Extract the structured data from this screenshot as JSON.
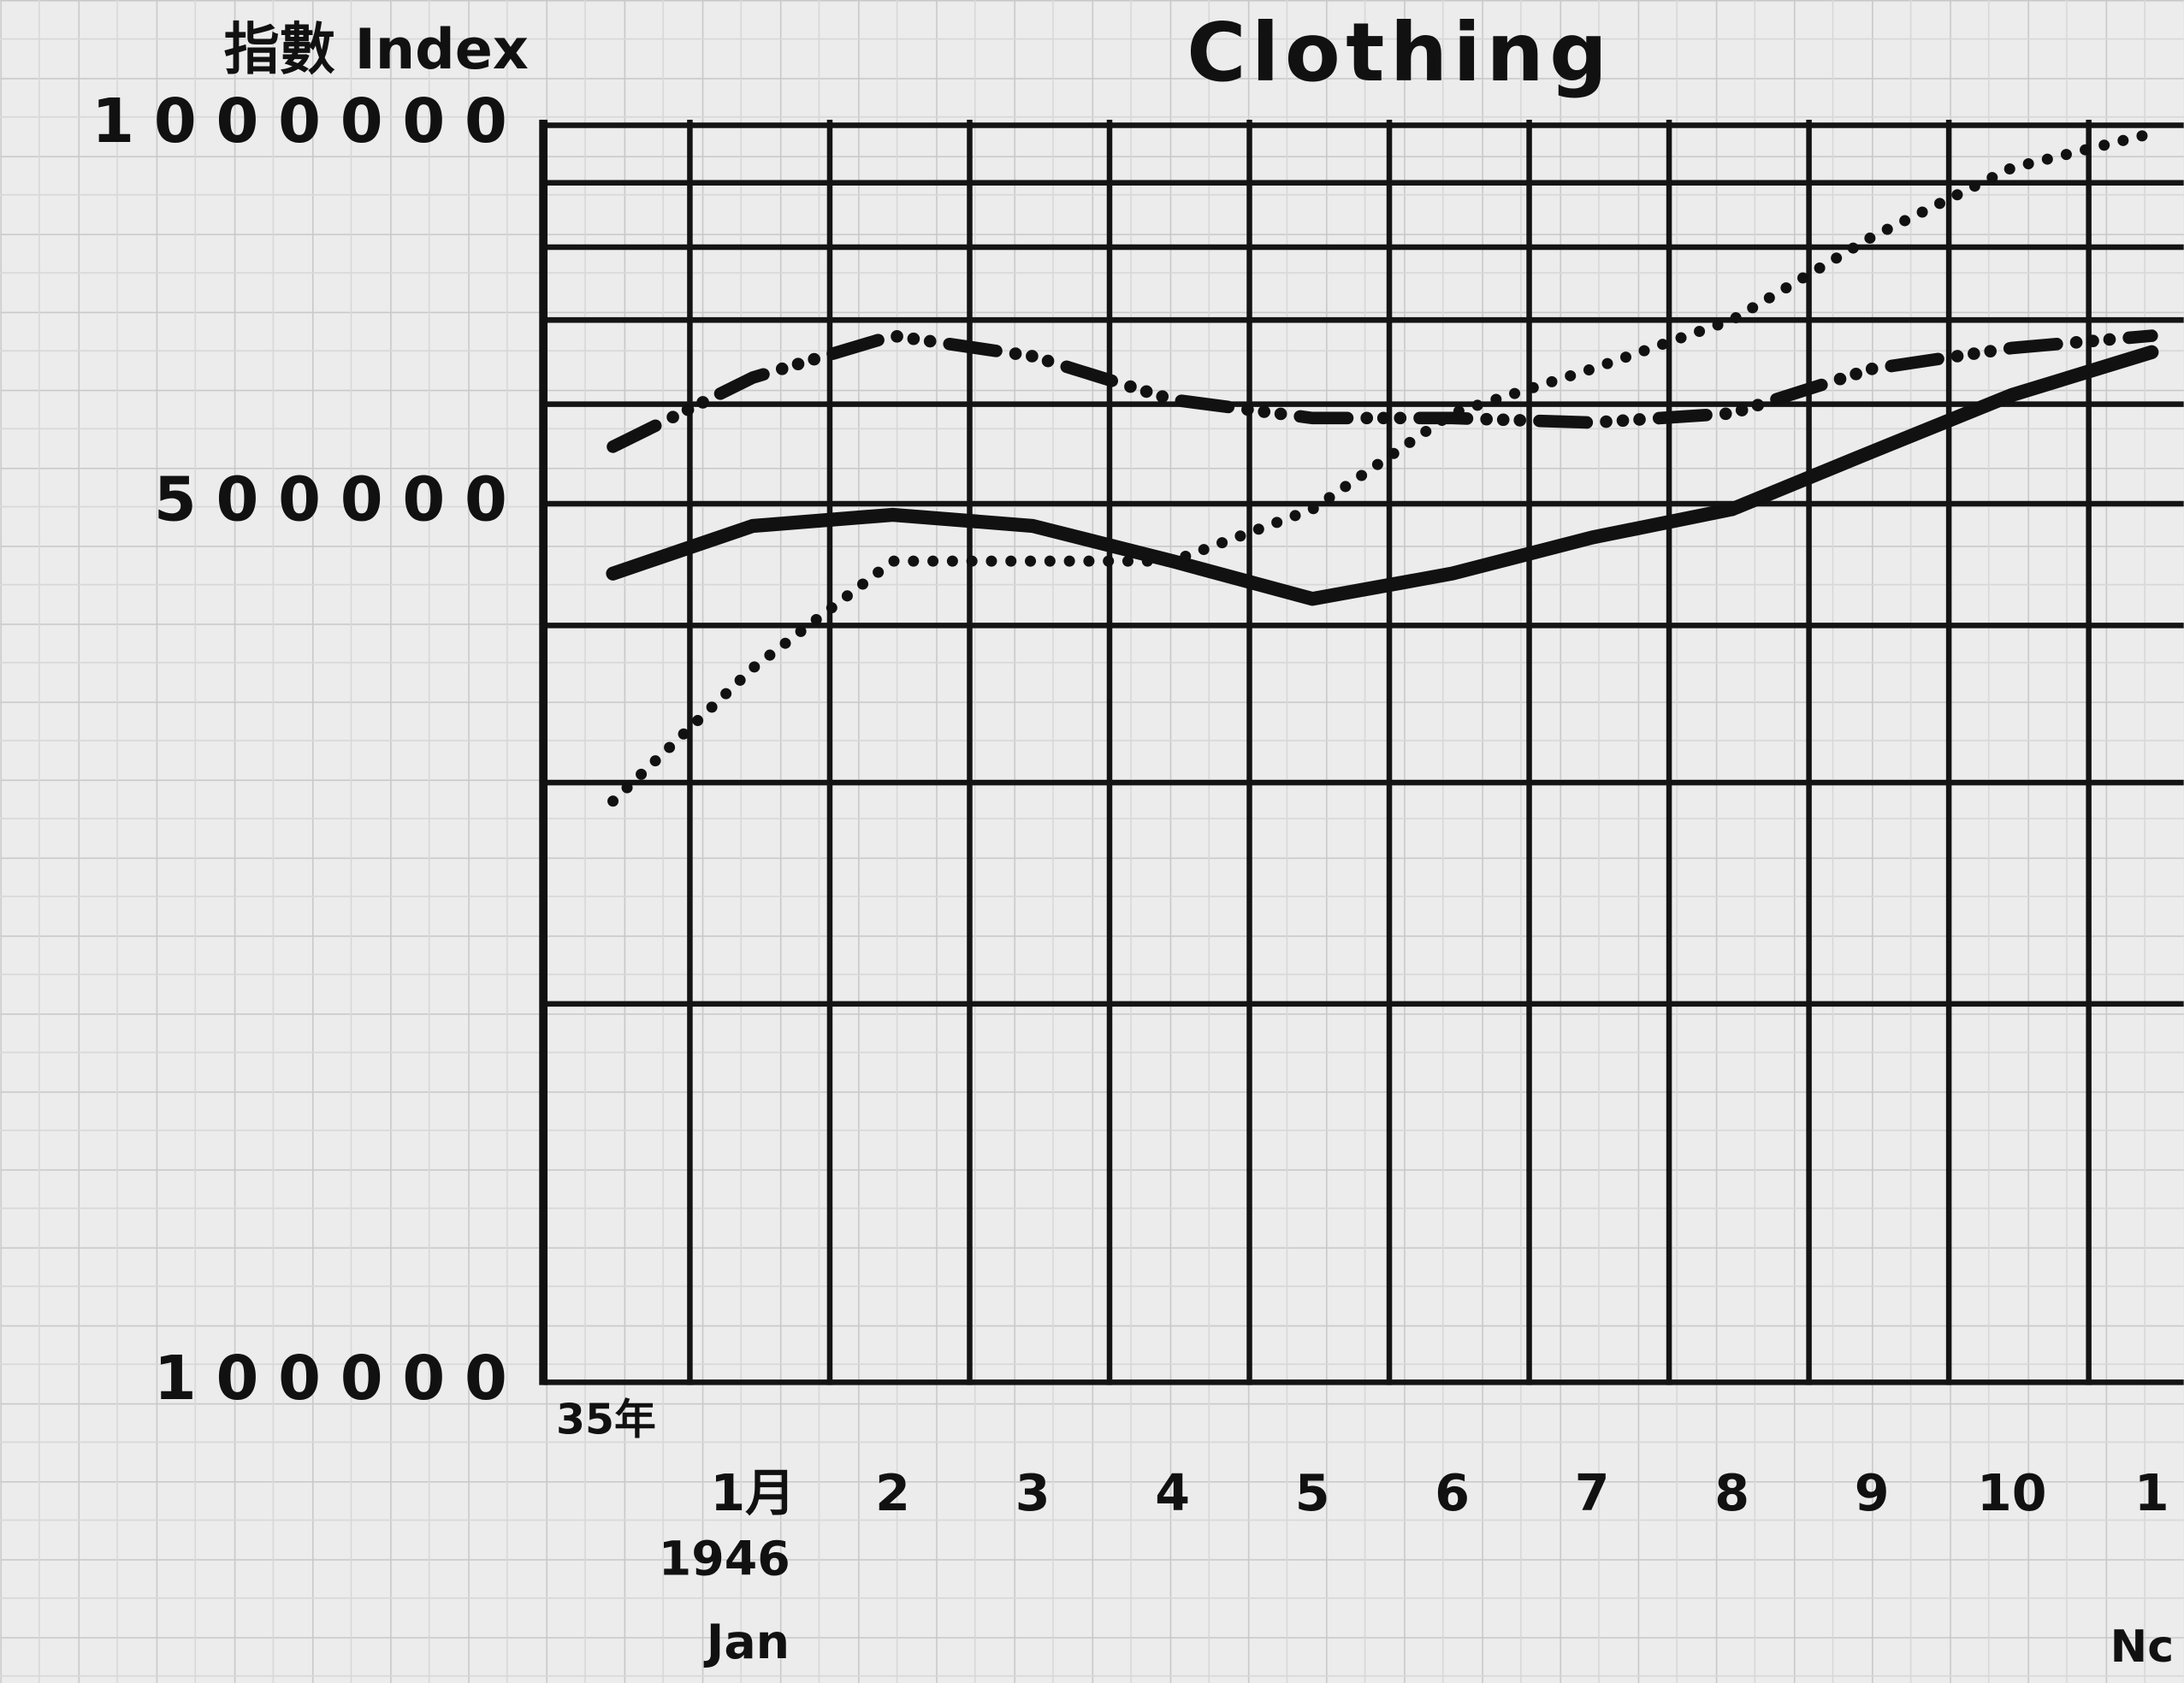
{
  "chart_data": {
    "type": "line",
    "title": "Clothing",
    "y_label": "指數 Index",
    "categories": [
      "35年",
      "1月",
      "2",
      "3",
      "4",
      "5",
      "6",
      "7",
      "8",
      "9",
      "10",
      "1"
    ],
    "year_label": "1946",
    "start_month_label": "Jan",
    "end_month_label": "Nc",
    "log_y": true,
    "ylim": [
      100000,
      1000000
    ],
    "yticks": [
      100000,
      500000,
      1000000
    ],
    "minor_yticks": [
      200000,
      300000,
      400000,
      600000,
      700000,
      800000,
      900000
    ],
    "grid": true,
    "series": [
      {
        "style": "solid",
        "color": "#111111",
        "values": [
          440000,
          480000,
          490000,
          480000,
          450000,
          420000,
          440000,
          470000,
          495000,
          550000,
          610000,
          660000
        ]
      },
      {
        "style": "dotted",
        "color": "#111111",
        "values": [
          290000,
          370000,
          450000,
          450000,
          450000,
          495000,
          590000,
          640000,
          700000,
          815000,
          925000,
          985000
        ]
      },
      {
        "style": "dashdot",
        "color": "#111111",
        "values": [
          555000,
          630000,
          680000,
          655000,
          605000,
          585000,
          585000,
          580000,
          590000,
          640000,
          665000,
          680000
        ]
      }
    ]
  }
}
